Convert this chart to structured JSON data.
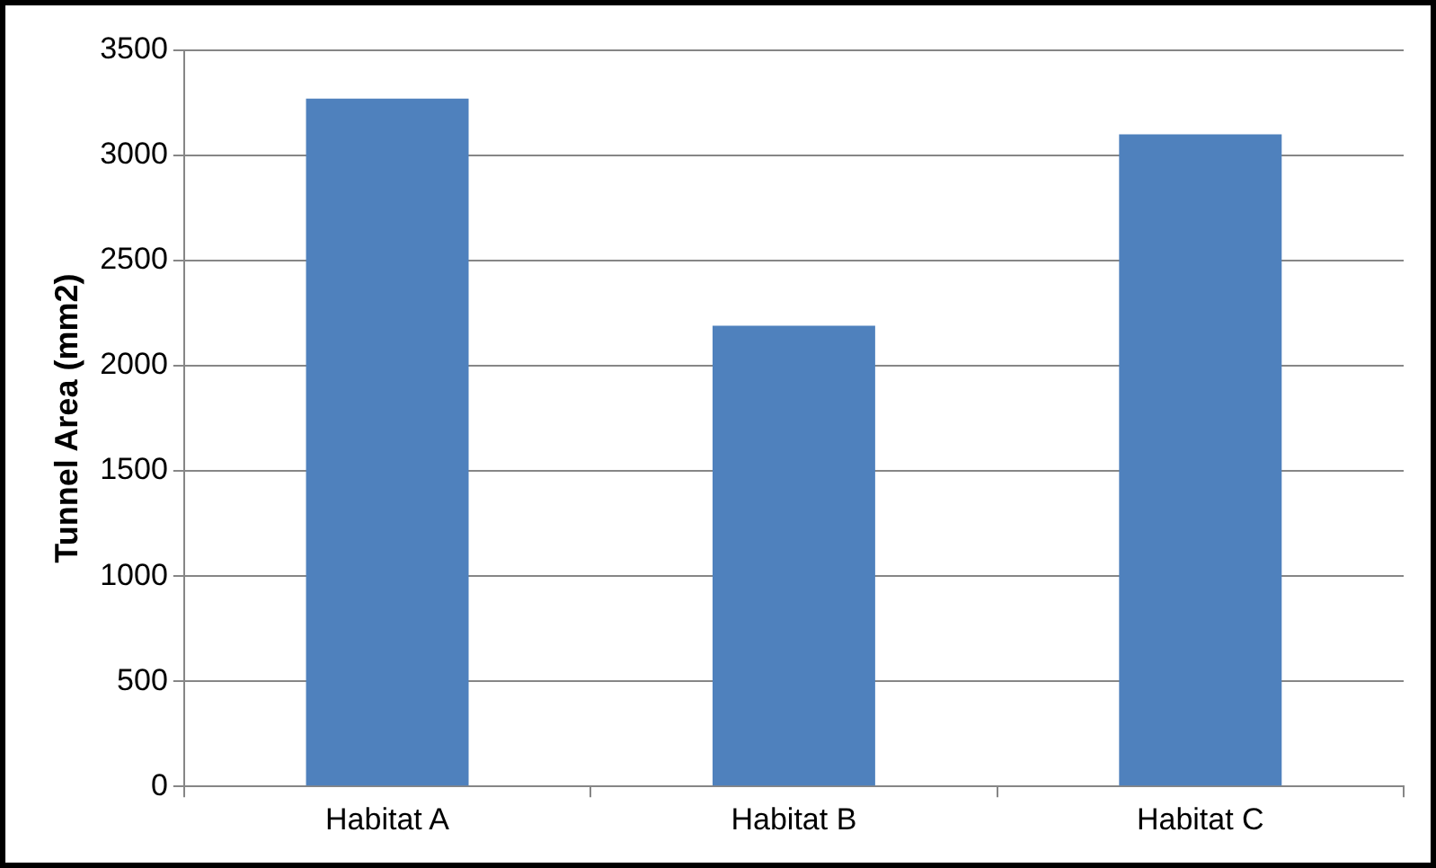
{
  "chart_data": {
    "type": "bar",
    "ylabel": "Tunnel Area (mm2)",
    "categories": [
      "Habitat A",
      "Habitat B",
      "Habitat C"
    ],
    "values": [
      3270,
      2190,
      3100
    ],
    "color": "#4f81bd",
    "ylim": [
      0,
      3500
    ],
    "yticks": [
      0,
      500,
      1000,
      1500,
      2000,
      2500,
      3000,
      3500
    ],
    "grid": "y",
    "legend": false
  }
}
